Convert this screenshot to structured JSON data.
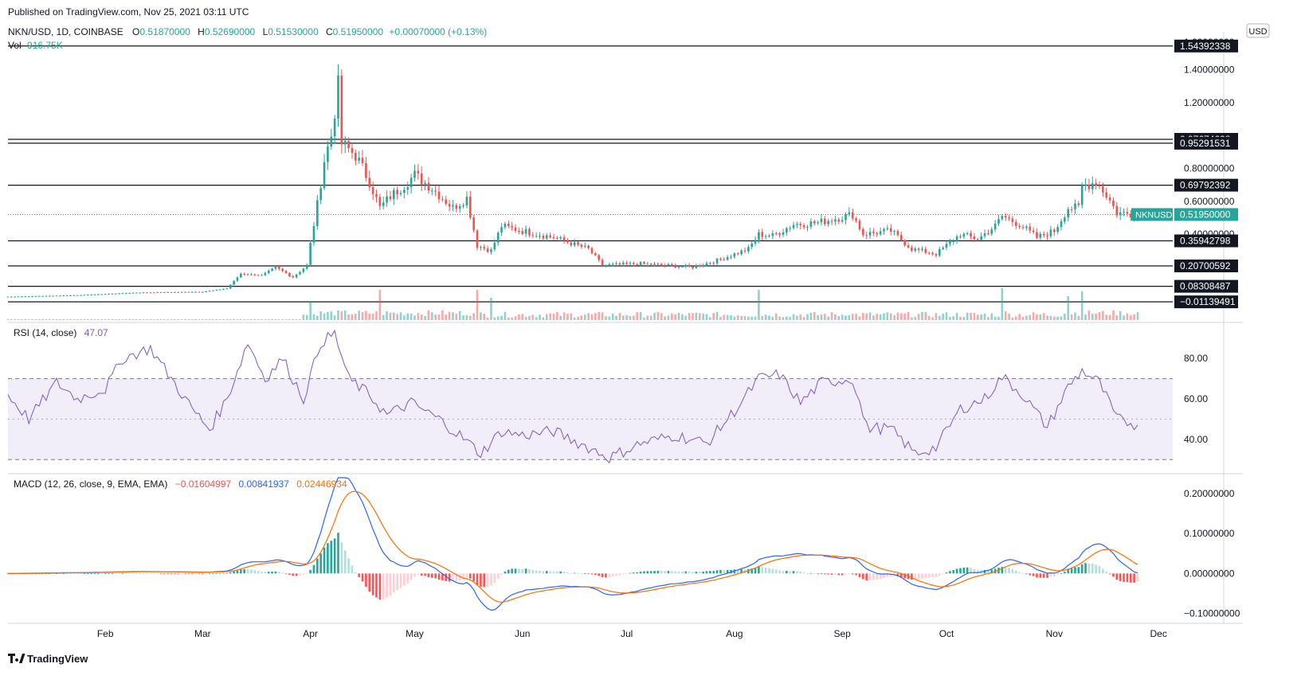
{
  "header": {
    "published": "Published on TradingView.com, Nov 25, 2021 03:11 UTC",
    "currency": "USD"
  },
  "legend": {
    "symbol": "NKN/USD, 1D, COINBASE",
    "o_label": "O",
    "o": "0.51870000",
    "h_label": "H",
    "h": "0.52690000",
    "l_label": "L",
    "l": "0.51530000",
    "c_label": "C",
    "c": "0.51950000",
    "change": "+0.00070000 (+0.13%)",
    "vol_label": "Vol",
    "vol": "916.75K"
  },
  "rsi_legend": {
    "label": "RSI (14, close)",
    "value": "47.07"
  },
  "macd_legend": {
    "label": "MACD (12, 26, close, 9, EMA, EMA)",
    "hist": "−0.01604997",
    "macd": "0.00841937",
    "signal": "0.02446934"
  },
  "footer": {
    "logo_text": "TradingView"
  },
  "colors": {
    "up": "#26a69a",
    "down": "#ef5350",
    "macd": "#2962ff",
    "signal": "#ff6d00",
    "rsi": "#7e57c2"
  },
  "chart_data": [
    {
      "type": "candlestick",
      "title": "NKN/USD, 1D, COINBASE",
      "x_range": [
        "2021-01-04",
        "2021-11-25"
      ],
      "ylim": [
        -0.03,
        1.63
      ],
      "y_ticks": [
        "1.40000000",
        "1.20000000",
        "0.80000000",
        "0.60000000",
        "0.40000000"
      ],
      "y_tick_values": [
        1.4,
        1.2,
        0.8,
        0.6,
        0.4
      ],
      "top_tick": "1.60000000",
      "x_ticks": [
        {
          "date": "2021-02-01",
          "label": "Feb"
        },
        {
          "date": "2021-03-01",
          "label": "Mar"
        },
        {
          "date": "2021-04-01",
          "label": "Apr"
        },
        {
          "date": "2021-05-01",
          "label": "May"
        },
        {
          "date": "2021-06-01",
          "label": "Jun"
        },
        {
          "date": "2021-07-01",
          "label": "Jul"
        },
        {
          "date": "2021-08-01",
          "label": "Aug"
        },
        {
          "date": "2021-09-01",
          "label": "Sep"
        },
        {
          "date": "2021-10-01",
          "label": "Oct"
        },
        {
          "date": "2021-11-01",
          "label": "Nov"
        },
        {
          "date": "2021-12-01",
          "label": "Dec"
        }
      ],
      "horizontal_levels": [
        {
          "value": 1.54392338,
          "label": "1.54392338"
        },
        {
          "value": 0.97674628,
          "label": "0.97674628"
        },
        {
          "value": 0.95291531,
          "label": "0.95291531"
        },
        {
          "value": 0.69792392,
          "label": "0.69792392"
        },
        {
          "value": 0.35942798,
          "label": "0.35942798"
        },
        {
          "value": 0.20700592,
          "label": "0.20700592"
        },
        {
          "value": 0.08308487,
          "label": "0.08308487"
        },
        {
          "value": -0.01139491,
          "label": "−0.01139491"
        }
      ],
      "last_price": {
        "value": 0.5195,
        "symbol": "NKNUSD",
        "label": "0.51950000"
      },
      "close_anchors": [
        [
          "2021-01-04",
          0.02
        ],
        [
          "2021-01-25",
          0.03
        ],
        [
          "2021-02-10",
          0.045
        ],
        [
          "2021-03-01",
          0.05
        ],
        [
          "2021-03-08",
          0.07
        ],
        [
          "2021-03-12",
          0.16
        ],
        [
          "2021-03-18",
          0.15
        ],
        [
          "2021-03-22",
          0.2
        ],
        [
          "2021-03-27",
          0.14
        ],
        [
          "2021-03-31",
          0.21
        ],
        [
          "2021-04-01",
          0.34
        ],
        [
          "2021-04-03",
          0.58
        ],
        [
          "2021-04-05",
          0.85
        ],
        [
          "2021-04-07",
          1.0
        ],
        [
          "2021-04-09",
          1.3
        ],
        [
          "2021-04-10",
          0.95
        ],
        [
          "2021-04-14",
          0.88
        ],
        [
          "2021-04-18",
          0.72
        ],
        [
          "2021-04-21",
          0.56
        ],
        [
          "2021-04-24",
          0.63
        ],
        [
          "2021-04-28",
          0.7
        ],
        [
          "2021-05-01",
          0.76
        ],
        [
          "2021-05-06",
          0.68
        ],
        [
          "2021-05-12",
          0.56
        ],
        [
          "2021-05-16",
          0.62
        ],
        [
          "2021-05-19",
          0.33
        ],
        [
          "2021-05-23",
          0.3
        ],
        [
          "2021-05-26",
          0.45
        ],
        [
          "2021-06-01",
          0.42
        ],
        [
          "2021-06-10",
          0.38
        ],
        [
          "2021-06-20",
          0.31
        ],
        [
          "2021-06-24",
          0.21
        ],
        [
          "2021-07-05",
          0.22
        ],
        [
          "2021-07-20",
          0.2
        ],
        [
          "2021-07-27",
          0.24
        ],
        [
          "2021-08-05",
          0.31
        ],
        [
          "2021-08-08",
          0.4
        ],
        [
          "2021-08-12",
          0.39
        ],
        [
          "2021-08-18",
          0.46
        ],
        [
          "2021-08-25",
          0.47
        ],
        [
          "2021-09-04",
          0.52
        ],
        [
          "2021-09-07",
          0.4
        ],
        [
          "2021-09-15",
          0.42
        ],
        [
          "2021-09-21",
          0.31
        ],
        [
          "2021-09-28",
          0.28
        ],
        [
          "2021-10-05",
          0.4
        ],
        [
          "2021-10-10",
          0.37
        ],
        [
          "2021-10-15",
          0.45
        ],
        [
          "2021-10-17",
          0.51
        ],
        [
          "2021-10-22",
          0.46
        ],
        [
          "2021-10-27",
          0.38
        ],
        [
          "2021-11-01",
          0.42
        ],
        [
          "2021-11-05",
          0.56
        ],
        [
          "2021-11-08",
          0.56
        ],
        [
          "2021-11-09",
          0.69
        ],
        [
          "2021-11-13",
          0.72
        ],
        [
          "2021-11-16",
          0.64
        ],
        [
          "2021-11-19",
          0.53
        ],
        [
          "2021-11-25",
          0.5195
        ]
      ],
      "volume_spikes": [
        [
          "2021-04-01",
          0.55
        ],
        [
          "2021-04-21",
          0.95
        ],
        [
          "2021-05-19",
          0.95
        ],
        [
          "2021-05-23",
          0.7
        ],
        [
          "2021-08-08",
          0.95
        ],
        [
          "2021-10-17",
          1.0
        ],
        [
          "2021-11-05",
          0.75
        ],
        [
          "2021-11-09",
          0.9
        ]
      ]
    },
    {
      "type": "line",
      "name": "RSI (14, close)",
      "ylim": [
        25,
        95
      ],
      "y_ticks": [
        "80.00",
        "60.00",
        "40.00"
      ],
      "y_tick_values": [
        80,
        60,
        40
      ],
      "band": [
        30,
        70
      ],
      "midline": 50,
      "last": 47.07,
      "anchors": [
        [
          "2021-01-04",
          62
        ],
        [
          "2021-01-10",
          50
        ],
        [
          "2021-01-18",
          68
        ],
        [
          "2021-01-24",
          60
        ],
        [
          "2021-02-01",
          65
        ],
        [
          "2021-02-06",
          80
        ],
        [
          "2021-02-14",
          85
        ],
        [
          "2021-02-20",
          70
        ],
        [
          "2021-02-26",
          55
        ],
        [
          "2021-03-03",
          45
        ],
        [
          "2021-03-08",
          60
        ],
        [
          "2021-03-14",
          88
        ],
        [
          "2021-03-19",
          70
        ],
        [
          "2021-03-24",
          80
        ],
        [
          "2021-03-30",
          60
        ],
        [
          "2021-04-04",
          88
        ],
        [
          "2021-04-08",
          92
        ],
        [
          "2021-04-12",
          70
        ],
        [
          "2021-04-18",
          62
        ],
        [
          "2021-04-23",
          52
        ],
        [
          "2021-04-30",
          58
        ],
        [
          "2021-05-08",
          50
        ],
        [
          "2021-05-14",
          42
        ],
        [
          "2021-05-20",
          33
        ],
        [
          "2021-05-26",
          44
        ],
        [
          "2021-06-01",
          42
        ],
        [
          "2021-06-10",
          44
        ],
        [
          "2021-06-20",
          36
        ],
        [
          "2021-06-26",
          31
        ],
        [
          "2021-07-05",
          38
        ],
        [
          "2021-07-15",
          42
        ],
        [
          "2021-07-24",
          38
        ],
        [
          "2021-08-02",
          56
        ],
        [
          "2021-08-08",
          70
        ],
        [
          "2021-08-14",
          72
        ],
        [
          "2021-08-20",
          58
        ],
        [
          "2021-08-26",
          68
        ],
        [
          "2021-09-04",
          70
        ],
        [
          "2021-09-08",
          46
        ],
        [
          "2021-09-15",
          45
        ],
        [
          "2021-09-22",
          33
        ],
        [
          "2021-09-28",
          36
        ],
        [
          "2021-10-05",
          55
        ],
        [
          "2021-10-12",
          60
        ],
        [
          "2021-10-17",
          71
        ],
        [
          "2021-10-23",
          62
        ],
        [
          "2021-10-30",
          46
        ],
        [
          "2021-11-05",
          66
        ],
        [
          "2021-11-09",
          74
        ],
        [
          "2021-11-14",
          68
        ],
        [
          "2021-11-19",
          50
        ],
        [
          "2021-11-25",
          47.07
        ]
      ]
    },
    {
      "type": "line",
      "name": "MACD (12, 26, close, 9, EMA, EMA)",
      "ylim": [
        -0.115,
        0.24
      ],
      "y_ticks": [
        "0.20000000",
        "0.10000000",
        "0.00000000",
        "−0.10000000"
      ],
      "y_tick_values": [
        0.2,
        0.1,
        0.0,
        -0.1
      ],
      "last": {
        "histogram": -0.01604997,
        "macd": 0.00841937,
        "signal": 0.02446934
      }
    }
  ]
}
